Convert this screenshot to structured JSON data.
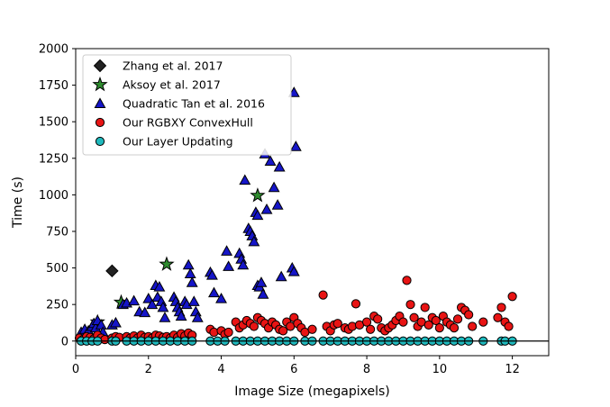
{
  "chart_data": {
    "type": "scatter",
    "title": "",
    "xlabel": "Image Size (megapixels)",
    "ylabel": "Time (s)",
    "xlim": [
      0,
      13
    ],
    "ylim": [
      -100,
      2000
    ],
    "xticks": [
      0,
      2,
      4,
      6,
      8,
      10,
      12
    ],
    "yticks": [
      0,
      250,
      500,
      750,
      1000,
      1250,
      1500,
      1750,
      2000
    ],
    "grid": false,
    "zero_line": true,
    "legend_position": "top-left",
    "series": [
      {
        "name": "Zhang et al. 2017",
        "marker": "diamond",
        "color": "#222222",
        "points": [
          [
            1.0,
            480
          ]
        ]
      },
      {
        "name": "Aksoy et al. 2017",
        "marker": "star",
        "color": "#2e8b2e",
        "points": [
          [
            0.6,
            130
          ],
          [
            1.25,
            265
          ],
          [
            2.5,
            525
          ],
          [
            5.0,
            995
          ]
        ]
      },
      {
        "name": "Quadratic Tan et al. 2016",
        "marker": "triangle",
        "color": "#1515c8",
        "points": [
          [
            0.15,
            60
          ],
          [
            0.25,
            80
          ],
          [
            0.35,
            70
          ],
          [
            0.45,
            100
          ],
          [
            0.5,
            120
          ],
          [
            0.55,
            90
          ],
          [
            0.6,
            140
          ],
          [
            0.7,
            110
          ],
          [
            0.75,
            60
          ],
          [
            1.0,
            110
          ],
          [
            1.1,
            125
          ],
          [
            1.3,
            250
          ],
          [
            1.4,
            260
          ],
          [
            1.6,
            275
          ],
          [
            1.75,
            200
          ],
          [
            1.9,
            195
          ],
          [
            2.0,
            290
          ],
          [
            2.1,
            250
          ],
          [
            2.2,
            380
          ],
          [
            2.25,
            300
          ],
          [
            2.3,
            370
          ],
          [
            2.35,
            270
          ],
          [
            2.4,
            230
          ],
          [
            2.45,
            160
          ],
          [
            2.7,
            300
          ],
          [
            2.75,
            270
          ],
          [
            2.8,
            230
          ],
          [
            2.85,
            200
          ],
          [
            2.9,
            170
          ],
          [
            3.0,
            270
          ],
          [
            3.05,
            250
          ],
          [
            3.1,
            520
          ],
          [
            3.15,
            460
          ],
          [
            3.2,
            400
          ],
          [
            3.25,
            270
          ],
          [
            3.3,
            200
          ],
          [
            3.35,
            160
          ],
          [
            3.7,
            470
          ],
          [
            3.75,
            450
          ],
          [
            3.8,
            330
          ],
          [
            4.0,
            290
          ],
          [
            4.15,
            615
          ],
          [
            4.2,
            510
          ],
          [
            4.5,
            600
          ],
          [
            4.55,
            560
          ],
          [
            4.6,
            520
          ],
          [
            4.65,
            1100
          ],
          [
            4.75,
            770
          ],
          [
            4.8,
            750
          ],
          [
            4.85,
            720
          ],
          [
            4.9,
            680
          ],
          [
            4.95,
            880
          ],
          [
            5.0,
            860
          ],
          [
            5.0,
            380
          ],
          [
            5.05,
            370
          ],
          [
            5.1,
            400
          ],
          [
            5.15,
            320
          ],
          [
            5.2,
            1280
          ],
          [
            5.25,
            900
          ],
          [
            5.35,
            1230
          ],
          [
            5.45,
            1050
          ],
          [
            5.55,
            930
          ],
          [
            5.6,
            1190
          ],
          [
            5.65,
            440
          ],
          [
            5.95,
            500
          ],
          [
            6.0,
            475
          ],
          [
            6.0,
            1700
          ],
          [
            6.05,
            1330
          ]
        ]
      },
      {
        "name": "Our RGBXY ConvexHull",
        "marker": "circle",
        "color": "#e81414",
        "points": [
          [
            0.1,
            20
          ],
          [
            0.2,
            10
          ],
          [
            0.3,
            30
          ],
          [
            0.4,
            25
          ],
          [
            0.5,
            15
          ],
          [
            0.6,
            40
          ],
          [
            0.7,
            20
          ],
          [
            0.8,
            10
          ],
          [
            1.0,
            20
          ],
          [
            1.1,
            30
          ],
          [
            1.2,
            25
          ],
          [
            1.4,
            30
          ],
          [
            1.5,
            20
          ],
          [
            1.6,
            35
          ],
          [
            1.7,
            20
          ],
          [
            1.8,
            40
          ],
          [
            1.9,
            25
          ],
          [
            2.0,
            30
          ],
          [
            2.1,
            20
          ],
          [
            2.2,
            40
          ],
          [
            2.3,
            35
          ],
          [
            2.4,
            25
          ],
          [
            2.5,
            30
          ],
          [
            2.6,
            20
          ],
          [
            2.7,
            40
          ],
          [
            2.8,
            25
          ],
          [
            2.9,
            50
          ],
          [
            3.0,
            35
          ],
          [
            3.1,
            55
          ],
          [
            3.2,
            40
          ],
          [
            3.7,
            80
          ],
          [
            3.8,
            60
          ],
          [
            4.0,
            70
          ],
          [
            4.1,
            45
          ],
          [
            4.2,
            60
          ],
          [
            4.4,
            130
          ],
          [
            4.5,
            90
          ],
          [
            4.6,
            110
          ],
          [
            4.7,
            140
          ],
          [
            4.8,
            120
          ],
          [
            4.9,
            100
          ],
          [
            5.0,
            160
          ],
          [
            5.1,
            140
          ],
          [
            5.2,
            120
          ],
          [
            5.3,
            90
          ],
          [
            5.4,
            130
          ],
          [
            5.5,
            110
          ],
          [
            5.6,
            80
          ],
          [
            5.7,
            70
          ],
          [
            5.8,
            130
          ],
          [
            5.9,
            100
          ],
          [
            6.0,
            160
          ],
          [
            6.1,
            120
          ],
          [
            6.2,
            90
          ],
          [
            6.3,
            60
          ],
          [
            6.5,
            80
          ],
          [
            6.8,
            315
          ],
          [
            6.9,
            100
          ],
          [
            7.0,
            70
          ],
          [
            7.1,
            110
          ],
          [
            7.2,
            120
          ],
          [
            7.4,
            90
          ],
          [
            7.5,
            80
          ],
          [
            7.6,
            100
          ],
          [
            7.7,
            255
          ],
          [
            7.8,
            110
          ],
          [
            8.0,
            130
          ],
          [
            8.1,
            80
          ],
          [
            8.2,
            170
          ],
          [
            8.3,
            150
          ],
          [
            8.4,
            90
          ],
          [
            8.5,
            70
          ],
          [
            8.6,
            90
          ],
          [
            8.7,
            110
          ],
          [
            8.8,
            140
          ],
          [
            8.9,
            170
          ],
          [
            9.0,
            130
          ],
          [
            9.1,
            415
          ],
          [
            9.2,
            250
          ],
          [
            9.3,
            160
          ],
          [
            9.4,
            100
          ],
          [
            9.5,
            130
          ],
          [
            9.6,
            230
          ],
          [
            9.7,
            110
          ],
          [
            9.8,
            160
          ],
          [
            9.9,
            140
          ],
          [
            10.0,
            90
          ],
          [
            10.1,
            170
          ],
          [
            10.2,
            130
          ],
          [
            10.3,
            110
          ],
          [
            10.4,
            90
          ],
          [
            10.5,
            150
          ],
          [
            10.6,
            230
          ],
          [
            10.7,
            210
          ],
          [
            10.8,
            180
          ],
          [
            10.9,
            100
          ],
          [
            11.2,
            130
          ],
          [
            11.6,
            160
          ],
          [
            11.7,
            230
          ],
          [
            11.8,
            130
          ],
          [
            12.0,
            305
          ],
          [
            11.9,
            100
          ]
        ]
      },
      {
        "name": "Our Layer Updating",
        "marker": "circle",
        "color": "#1fb9bd",
        "points": [
          [
            0.15,
            0
          ],
          [
            0.3,
            0
          ],
          [
            0.45,
            0
          ],
          [
            0.6,
            0
          ],
          [
            1.0,
            0
          ],
          [
            1.1,
            0
          ],
          [
            1.4,
            0
          ],
          [
            1.6,
            0
          ],
          [
            1.8,
            0
          ],
          [
            2.0,
            0
          ],
          [
            2.2,
            0
          ],
          [
            2.4,
            0
          ],
          [
            2.6,
            0
          ],
          [
            2.8,
            0
          ],
          [
            3.0,
            0
          ],
          [
            3.2,
            0
          ],
          [
            3.7,
            0
          ],
          [
            3.9,
            0
          ],
          [
            4.1,
            0
          ],
          [
            4.4,
            0
          ],
          [
            4.6,
            0
          ],
          [
            4.8,
            0
          ],
          [
            5.0,
            0
          ],
          [
            5.2,
            0
          ],
          [
            5.4,
            0
          ],
          [
            5.6,
            0
          ],
          [
            5.8,
            0
          ],
          [
            6.0,
            0
          ],
          [
            6.3,
            0
          ],
          [
            6.5,
            0
          ],
          [
            6.8,
            0
          ],
          [
            7.0,
            0
          ],
          [
            7.2,
            0
          ],
          [
            7.4,
            0
          ],
          [
            7.6,
            0
          ],
          [
            7.8,
            0
          ],
          [
            8.0,
            0
          ],
          [
            8.2,
            0
          ],
          [
            8.4,
            0
          ],
          [
            8.6,
            0
          ],
          [
            8.8,
            0
          ],
          [
            9.0,
            0
          ],
          [
            9.2,
            0
          ],
          [
            9.4,
            0
          ],
          [
            9.6,
            0
          ],
          [
            9.8,
            0
          ],
          [
            10.0,
            0
          ],
          [
            10.2,
            0
          ],
          [
            10.4,
            0
          ],
          [
            10.6,
            0
          ],
          [
            10.8,
            0
          ],
          [
            11.2,
            0
          ],
          [
            11.7,
            0
          ],
          [
            11.8,
            0
          ],
          [
            12.0,
            0
          ]
        ]
      }
    ]
  }
}
